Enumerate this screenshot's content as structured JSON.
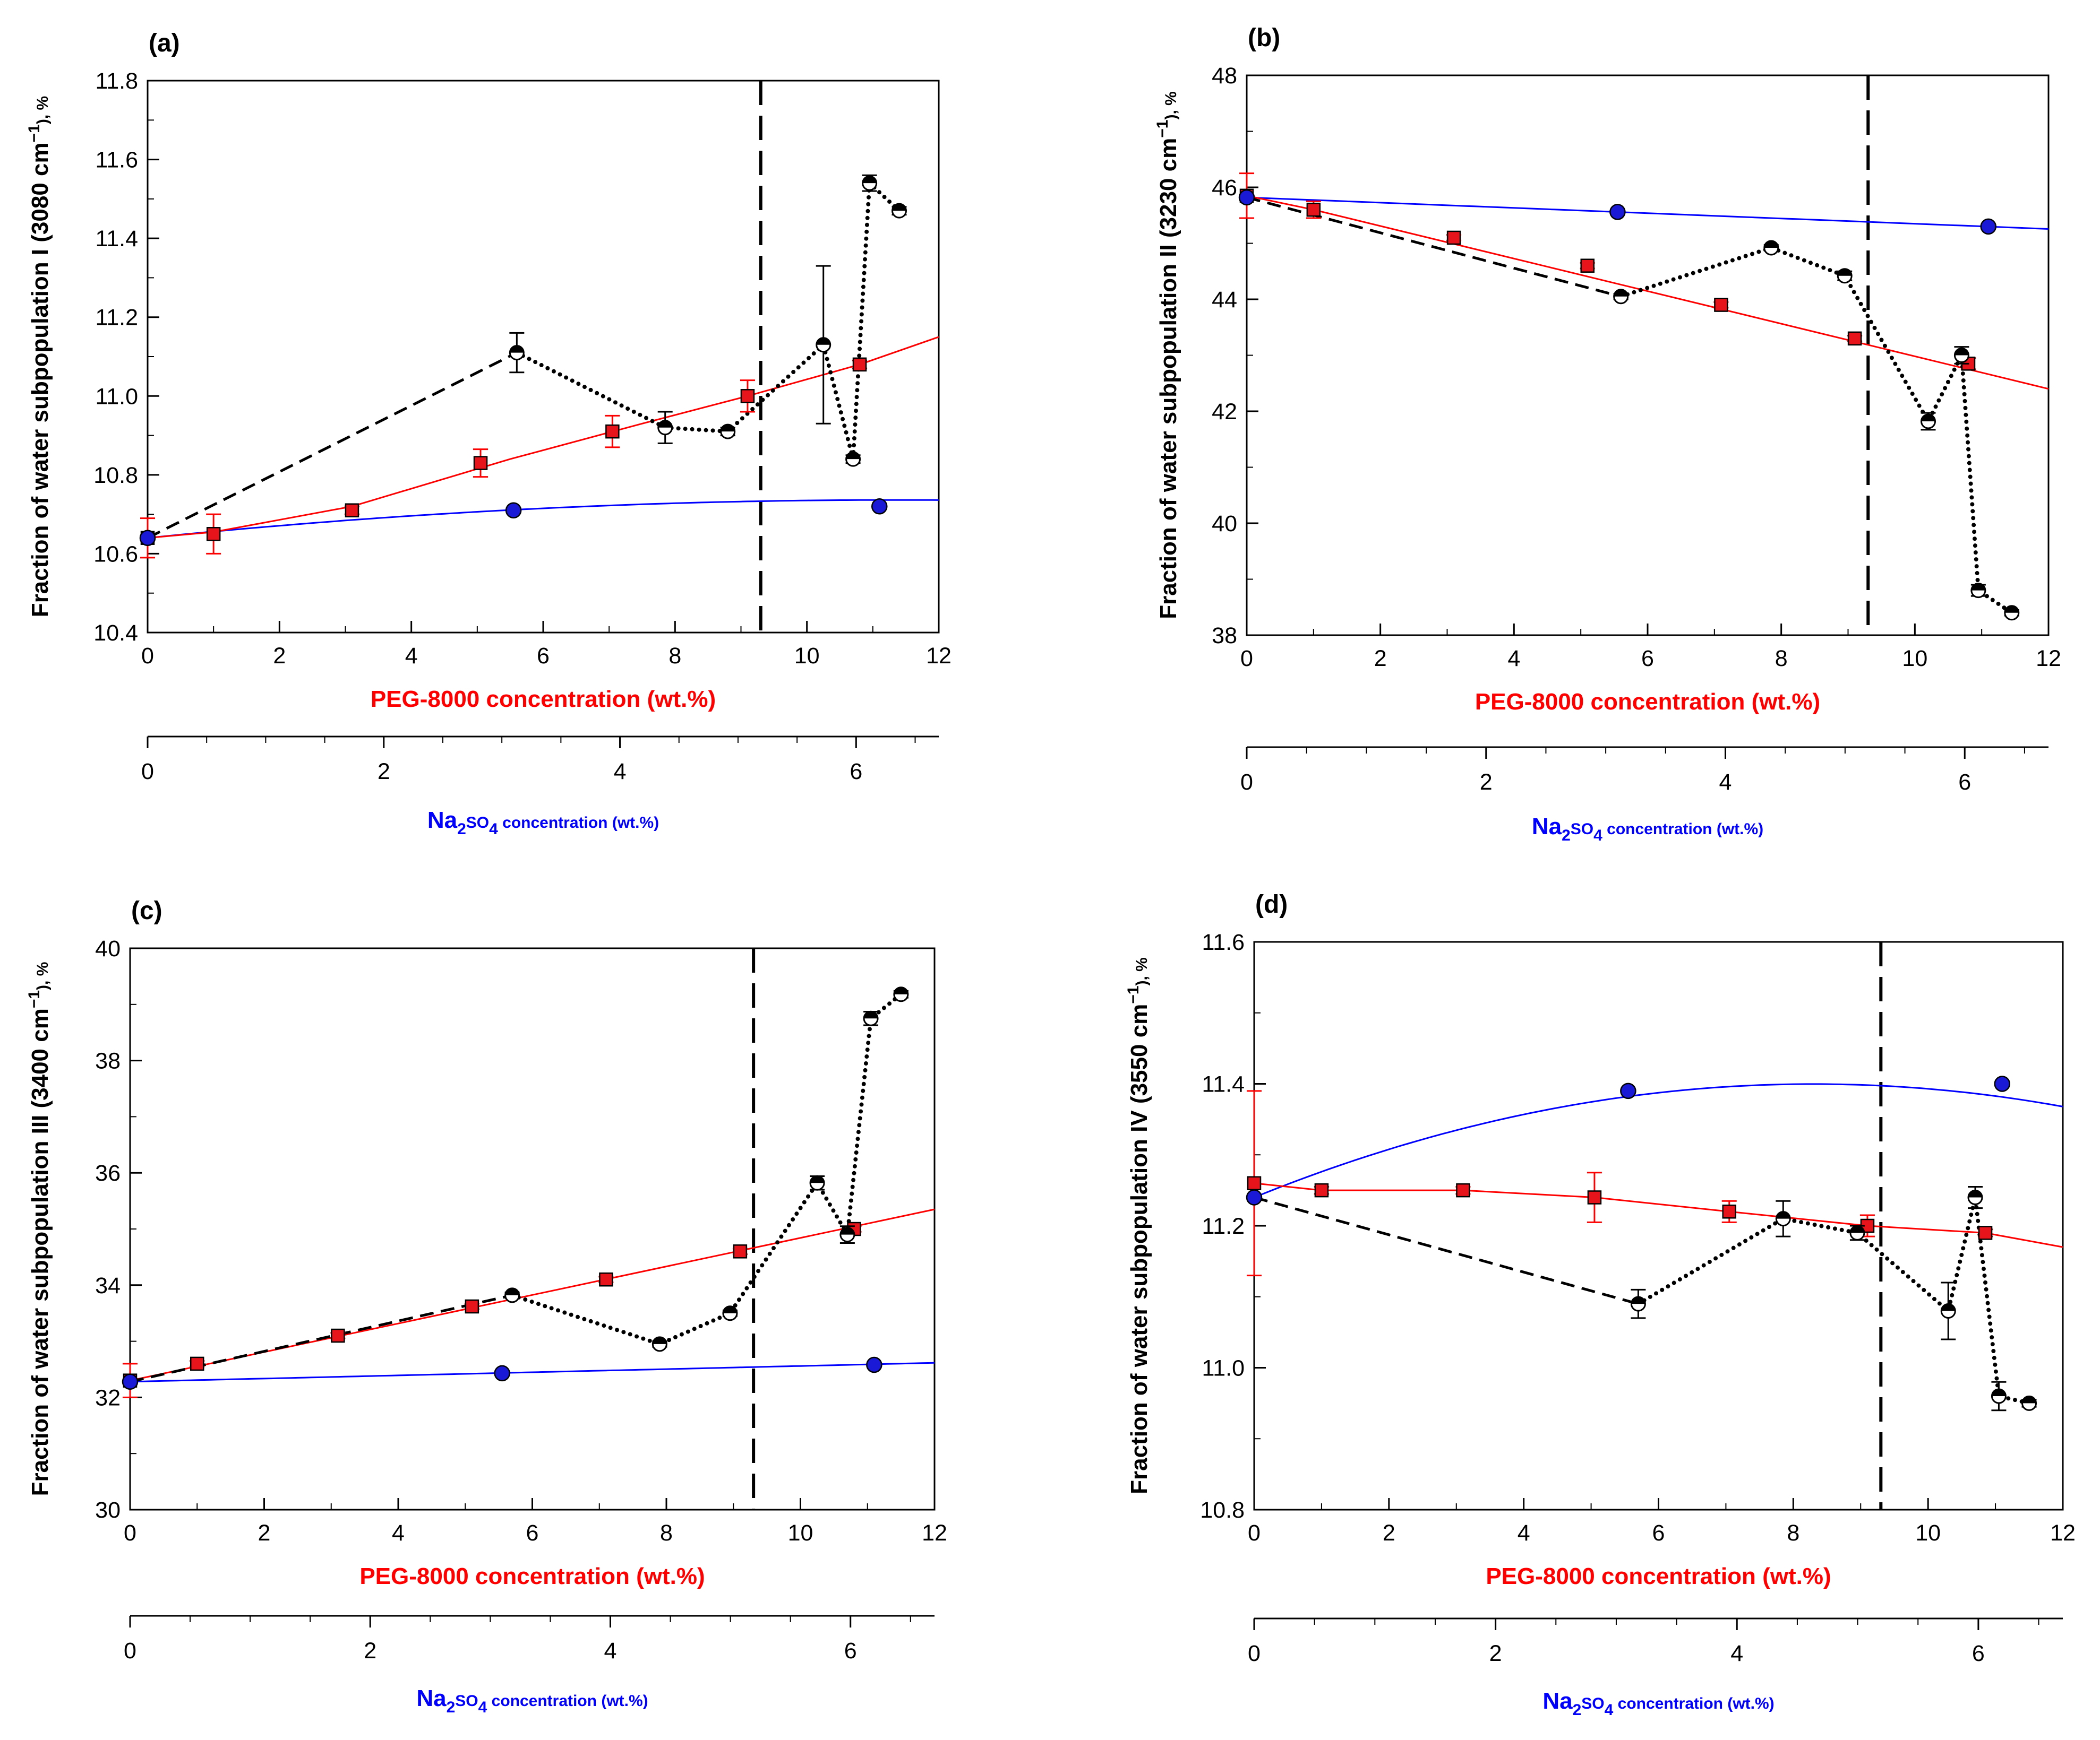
{
  "colors": {
    "peg": "#ff0000",
    "peg_marker": "#e8141b",
    "salt": "#0000ff",
    "salt_marker": "#1a1ad6",
    "mixture": "#000000"
  },
  "chart_data": [
    {
      "type": "scatter",
      "panel": "(a)",
      "ylabel": {
        "pre": "Fraction of water subpopulation I (3080 cm",
        "sup": "−1",
        "post": "), %"
      },
      "ylim": [
        10.4,
        11.8
      ],
      "yticks": [
        10.4,
        10.6,
        10.8,
        11.0,
        11.2,
        11.4,
        11.6,
        11.8
      ],
      "ytick_labels": [
        "10.4",
        "10.6",
        "10.8",
        "11.0",
        "11.2",
        "11.4",
        "11.6",
        "11.8"
      ],
      "xlim": [
        0,
        12
      ],
      "xticks": [
        0,
        2,
        4,
        6,
        8,
        10,
        12
      ],
      "xlabel": "PEG-8000 concentration (wt.%)",
      "x2label": {
        "pre": "Na",
        "sub1": "2",
        "mid": "SO",
        "sub2": "4",
        "post": " concentration (wt.%)"
      },
      "x2lim": [
        0,
        6.7
      ],
      "x2ticks": [
        0,
        2,
        4,
        6
      ],
      "phase_boundary_x": 9.3,
      "peg": {
        "x": [
          0,
          1,
          3.1,
          5.05,
          7.05,
          9.1,
          10.8
        ],
        "y": [
          10.64,
          10.65,
          10.71,
          10.83,
          10.91,
          11.0,
          11.08
        ],
        "err": [
          0.05,
          0.05,
          0.01,
          0.035,
          0.04,
          0.04,
          0.01
        ]
      },
      "peg_fit_y": [
        10.64,
        10.655,
        10.72,
        10.84,
        10.93,
        11.0,
        11.08,
        11.15
      ],
      "peg_fit_x": [
        0,
        1,
        3.1,
        5.5,
        7.5,
        9.1,
        10.8,
        12
      ],
      "salt": {
        "x": [
          0,
          5.55,
          11.1
        ],
        "y": [
          10.64,
          10.71,
          10.72
        ]
      },
      "salt_fit": {
        "a": 10.64,
        "b": 0.017,
        "c": -0.00075
      },
      "mixture": {
        "x": [
          5.6,
          7.85,
          8.8,
          10.25,
          10.7,
          10.95,
          11.4
        ],
        "y": [
          11.11,
          10.92,
          10.91,
          11.13,
          10.84,
          11.54,
          11.47
        ],
        "err": [
          0.05,
          0.04,
          0.01,
          0.2,
          0.01,
          0.02,
          0.01
        ]
      }
    },
    {
      "type": "scatter",
      "panel": "(b)",
      "ylabel": {
        "pre": "Fraction of water subpopulation II (3230 cm",
        "sup": "−1",
        "post": "), %"
      },
      "ylim": [
        38,
        48
      ],
      "yticks": [
        38,
        40,
        42,
        44,
        46,
        48
      ],
      "ytick_labels": [
        "38",
        "40",
        "42",
        "44",
        "46",
        "48"
      ],
      "xlim": [
        0,
        12
      ],
      "xticks": [
        0,
        2,
        4,
        6,
        8,
        10,
        12
      ],
      "xlabel": "PEG-8000 concentration (wt.%)",
      "x2label": {
        "pre": "Na",
        "sub1": "2",
        "mid": "SO",
        "sub2": "4",
        "post": " concentration (wt.%)"
      },
      "x2lim": [
        0,
        6.7
      ],
      "x2ticks": [
        0,
        2,
        4,
        6
      ],
      "phase_boundary_x": 9.3,
      "peg": {
        "x": [
          0,
          1,
          3.1,
          5.1,
          7.1,
          9.1,
          10.8
        ],
        "y": [
          45.85,
          45.6,
          45.1,
          44.6,
          43.9,
          43.3,
          42.85
        ],
        "err": [
          0.4,
          0.15,
          0.05,
          0.05,
          0.05,
          0.05,
          0.1
        ]
      },
      "peg_fit_y": [
        45.85,
        45.6,
        42.4
      ],
      "peg_fit_x": [
        0,
        1,
        12
      ],
      "salt": {
        "x": [
          0,
          5.55,
          11.1
        ],
        "y": [
          45.82,
          45.56,
          45.3
        ]
      },
      "salt_fit": {
        "a": 45.82,
        "b": -0.047,
        "c": 0.0
      },
      "mixture": {
        "x": [
          5.6,
          7.85,
          8.95,
          10.2,
          10.7,
          10.95,
          11.45
        ],
        "y": [
          44.05,
          44.92,
          44.42,
          41.82,
          43.0,
          38.8,
          38.4
        ],
        "err": [
          0.05,
          0.05,
          0.08,
          0.15,
          0.15,
          0.1,
          0.05
        ]
      }
    },
    {
      "type": "scatter",
      "panel": "(c)",
      "ylabel": {
        "pre": "Fraction of water subpopulation III (3400 cm",
        "sup": "−1",
        "post": "), %"
      },
      "ylim": [
        30,
        40
      ],
      "yticks": [
        30,
        32,
        34,
        36,
        38,
        40
      ],
      "ytick_labels": [
        "30",
        "32",
        "34",
        "36",
        "38",
        "40"
      ],
      "xlim": [
        0,
        12
      ],
      "xticks": [
        0,
        2,
        4,
        6,
        8,
        10,
        12
      ],
      "xlabel": "PEG-8000 concentration (wt.%)",
      "x2label": {
        "pre": "Na",
        "sub1": "2",
        "mid": "SO",
        "sub2": "4",
        "post": " concentration (wt.%)"
      },
      "x2lim": [
        0,
        6.7
      ],
      "x2ticks": [
        0,
        2,
        4,
        6
      ],
      "phase_boundary_x": 9.3,
      "peg": {
        "x": [
          0,
          1,
          3.1,
          5.1,
          7.1,
          9.1,
          10.8
        ],
        "y": [
          32.3,
          32.6,
          33.1,
          33.62,
          34.1,
          34.6,
          35.0
        ],
        "err": [
          0.3,
          0.05,
          0.05,
          0.05,
          0.05,
          0.05,
          0.05
        ]
      },
      "peg_fit_y": [
        32.3,
        35.35
      ],
      "peg_fit_x": [
        0,
        12
      ],
      "salt": {
        "x": [
          0,
          5.55,
          11.1
        ],
        "y": [
          32.28,
          32.43,
          32.58
        ]
      },
      "salt_fit": {
        "a": 32.28,
        "b": 0.028,
        "c": 0.0
      },
      "mixture": {
        "x": [
          5.7,
          7.9,
          8.95,
          10.25,
          10.7,
          11.05,
          11.5
        ],
        "y": [
          33.82,
          32.95,
          33.5,
          35.82,
          34.9,
          38.75,
          39.18
        ],
        "err": [
          0.05,
          0.05,
          0.05,
          0.12,
          0.15,
          0.12,
          0.06
        ]
      }
    },
    {
      "type": "scatter",
      "panel": "(d)",
      "ylabel": {
        "pre": "Fraction of water subpopulation IV (3550 cm",
        "sup": "−1",
        "post": "), %"
      },
      "ylim": [
        10.8,
        11.6
      ],
      "yticks": [
        10.8,
        11.0,
        11.2,
        11.4,
        11.6
      ],
      "ytick_labels": [
        "10.8",
        "11.0",
        "11.2",
        "11.4",
        "11.6"
      ],
      "xlim": [
        0,
        12
      ],
      "xticks": [
        0,
        2,
        4,
        6,
        8,
        10,
        12
      ],
      "xlabel": "PEG-8000 concentration (wt.%)",
      "x2label": {
        "pre": "Na",
        "sub1": "2",
        "mid": "SO",
        "sub2": "4",
        "post": " concentration (wt.%)"
      },
      "x2lim": [
        0,
        6.7
      ],
      "x2ticks": [
        0,
        2,
        4,
        6
      ],
      "phase_boundary_x": 9.3,
      "peg": {
        "x": [
          0,
          1,
          3.1,
          5.05,
          7.05,
          9.1,
          10.85
        ],
        "y": [
          11.26,
          11.25,
          11.25,
          11.24,
          11.22,
          11.2,
          11.19
        ],
        "err": [
          0.13,
          0.005,
          0.005,
          0.035,
          0.015,
          0.015,
          0.005
        ]
      },
      "peg_fit_y": [
        11.26,
        11.25,
        11.25,
        11.24,
        11.22,
        11.2,
        11.19,
        11.17
      ],
      "peg_fit_x": [
        0,
        1,
        3.1,
        5.05,
        7.05,
        9.1,
        10.85,
        12
      ],
      "salt": {
        "x": [
          0,
          5.55,
          11.1
        ],
        "y": [
          11.24,
          11.39,
          11.4
        ]
      },
      "salt_fit": {
        "a": 11.24,
        "b": 0.0385,
        "c": -0.00232
      },
      "mixture": {
        "x": [
          5.7,
          7.85,
          8.95,
          10.3,
          10.7,
          11.05,
          11.5
        ],
        "y": [
          11.09,
          11.21,
          11.19,
          11.08,
          11.24,
          10.96,
          10.95
        ],
        "err": [
          0.02,
          0.025,
          0.01,
          0.04,
          0.015,
          0.02,
          0.005
        ]
      }
    }
  ]
}
